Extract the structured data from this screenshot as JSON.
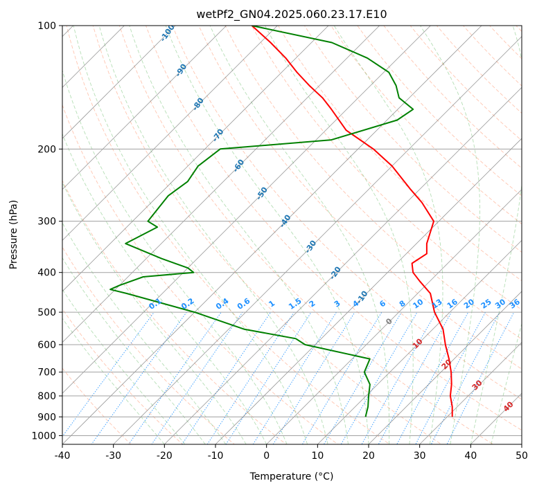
{
  "chart_data": {
    "type": "line",
    "title": "wetPf2_GN04.2025.060.23.17.E10",
    "xlabel": "Temperature (°C)",
    "ylabel": "Pressure (hPa)",
    "xlim": [
      -40,
      50
    ],
    "ylim": [
      1050,
      100
    ],
    "y_scale": "log",
    "skew": 45,
    "grid": true,
    "x_ticks": [
      "-40",
      "-30",
      "-20",
      "-10",
      "0",
      "10",
      "20",
      "30",
      "40",
      "50"
    ],
    "y_ticks": [
      "100",
      "200",
      "300",
      "400",
      "500",
      "600",
      "700",
      "800",
      "900",
      "1000"
    ],
    "series": [
      {
        "color": "#ff0000",
        "role": "temperature",
        "points": [
          [
            31,
            900
          ],
          [
            29,
            850
          ],
          [
            26.5,
            800
          ],
          [
            24.5,
            750
          ],
          [
            22,
            700
          ],
          [
            19,
            650
          ],
          [
            15.5,
            600
          ],
          [
            12,
            550
          ],
          [
            7,
            500
          ],
          [
            2.5,
            450
          ],
          [
            -2,
            420
          ],
          [
            -5,
            400
          ],
          [
            -7,
            380
          ],
          [
            -6,
            360
          ],
          [
            -8,
            340
          ],
          [
            -11,
            300
          ],
          [
            -17,
            270
          ],
          [
            -22,
            250
          ],
          [
            -30,
            220
          ],
          [
            -37,
            200
          ],
          [
            -46,
            180
          ],
          [
            -53,
            160
          ],
          [
            -57,
            150
          ],
          [
            -62,
            140
          ],
          [
            -67,
            130
          ],
          [
            -72,
            120
          ],
          [
            -78,
            110
          ],
          [
            -85,
            100
          ]
        ]
      },
      {
        "color": "#008000",
        "role": "dewpoint",
        "points": [
          [
            14,
            900
          ],
          [
            12.5,
            850
          ],
          [
            10.5,
            800
          ],
          [
            8.5,
            750
          ],
          [
            5,
            700
          ],
          [
            3.5,
            650
          ],
          [
            -12,
            600
          ],
          [
            -15,
            580
          ],
          [
            -27,
            550
          ],
          [
            -40,
            500
          ],
          [
            -57,
            450
          ],
          [
            -61,
            440
          ],
          [
            -60,
            430
          ],
          [
            -57,
            410
          ],
          [
            -48,
            400
          ],
          [
            -50,
            390
          ],
          [
            -57,
            370
          ],
          [
            -67,
            340
          ],
          [
            -64,
            310
          ],
          [
            -67,
            300
          ],
          [
            -68,
            260
          ],
          [
            -67,
            240
          ],
          [
            -68,
            220
          ],
          [
            -67,
            200
          ],
          [
            -47,
            190
          ],
          [
            -38,
            170
          ],
          [
            -37,
            160
          ],
          [
            -42,
            150
          ],
          [
            -45,
            140
          ],
          [
            -49,
            130
          ],
          [
            -56,
            120
          ],
          [
            -66,
            110
          ],
          [
            -85,
            100
          ]
        ]
      }
    ],
    "annotations": {
      "temperature_labels": [
        "-100",
        "-90",
        "-80",
        "-70",
        "-60",
        "-50",
        "-40",
        "-30",
        "-20",
        "-10"
      ],
      "mixing_ratio_labels": [
        "0.1",
        "0.2",
        "0.4",
        "0.6",
        "1",
        "1.5",
        "2",
        "3",
        "4",
        "6",
        "8",
        "10",
        "13",
        "16",
        "20",
        "25",
        "30",
        "36"
      ],
      "moist_adiabat_labels": [
        "0",
        "10",
        "20",
        "30",
        "40"
      ],
      "colors": {
        "temperature_labels": "#1f77b4",
        "mixing_ratio": "#1e90ff",
        "moist_adiabat_zero": "#808080",
        "moist_adiabat": "#d62728",
        "dry_adiabat": "#ff7f50",
        "moist_adiabat_line": "#2ca02c",
        "isotherm": "#808080",
        "isobar": "#a0a0a0"
      }
    }
  }
}
